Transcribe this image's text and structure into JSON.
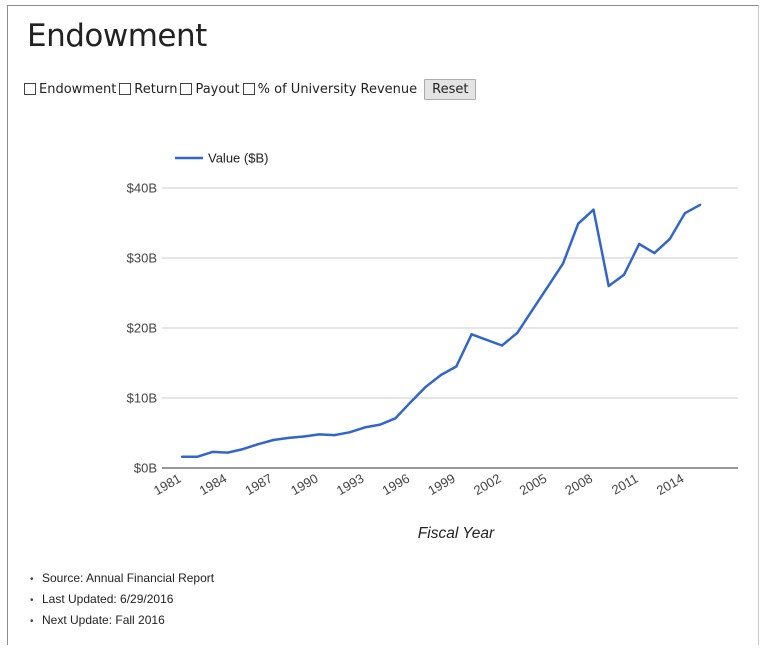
{
  "page": {
    "title": "Endowment",
    "controls": [
      {
        "label": "Endowment",
        "checked": false
      },
      {
        "label": "Return",
        "checked": false
      },
      {
        "label": "Payout",
        "checked": false
      },
      {
        "label": "% of University Revenue",
        "checked": false
      }
    ],
    "reset_label": "Reset",
    "notes": [
      "Source: Annual Financial Report",
      "Last Updated: 6/29/2016",
      "Next Update: Fall 2016"
    ]
  },
  "chart_data": {
    "type": "line",
    "title": "",
    "xlabel": "Fiscal Year",
    "ylabel": "",
    "x": [
      1981,
      1982,
      1983,
      1984,
      1985,
      1986,
      1987,
      1988,
      1989,
      1990,
      1991,
      1992,
      1993,
      1994,
      1995,
      1996,
      1997,
      1998,
      1999,
      2000,
      2001,
      2002,
      2003,
      2004,
      2005,
      2006,
      2007,
      2008,
      2009,
      2010,
      2011,
      2012,
      2013,
      2014,
      2015
    ],
    "series": [
      {
        "name": "Value ($B)",
        "color": "#3366cc",
        "values": [
          1.6,
          1.6,
          2.3,
          2.2,
          2.7,
          3.4,
          4.0,
          4.3,
          4.5,
          4.8,
          4.7,
          5.1,
          5.8,
          6.2,
          7.1,
          9.4,
          11.6,
          13.3,
          14.5,
          19.1,
          18.3,
          17.5,
          19.3,
          22.6,
          25.9,
          29.2,
          34.9,
          36.9,
          26.0,
          27.6,
          32.0,
          30.7,
          32.7,
          36.4,
          37.6
        ]
      }
    ],
    "ylim": [
      0,
      40
    ],
    "yticks": [
      0,
      10,
      20,
      30,
      40
    ],
    "ytick_labels": [
      "$0B",
      "$10B",
      "$20B",
      "$30B",
      "$40B"
    ],
    "xtick_labels": [
      "1981",
      "1984",
      "1987",
      "1990",
      "1993",
      "1996",
      "1999",
      "2002",
      "2005",
      "2008",
      "2011",
      "2014"
    ],
    "grid": true,
    "legend": "top-left"
  }
}
